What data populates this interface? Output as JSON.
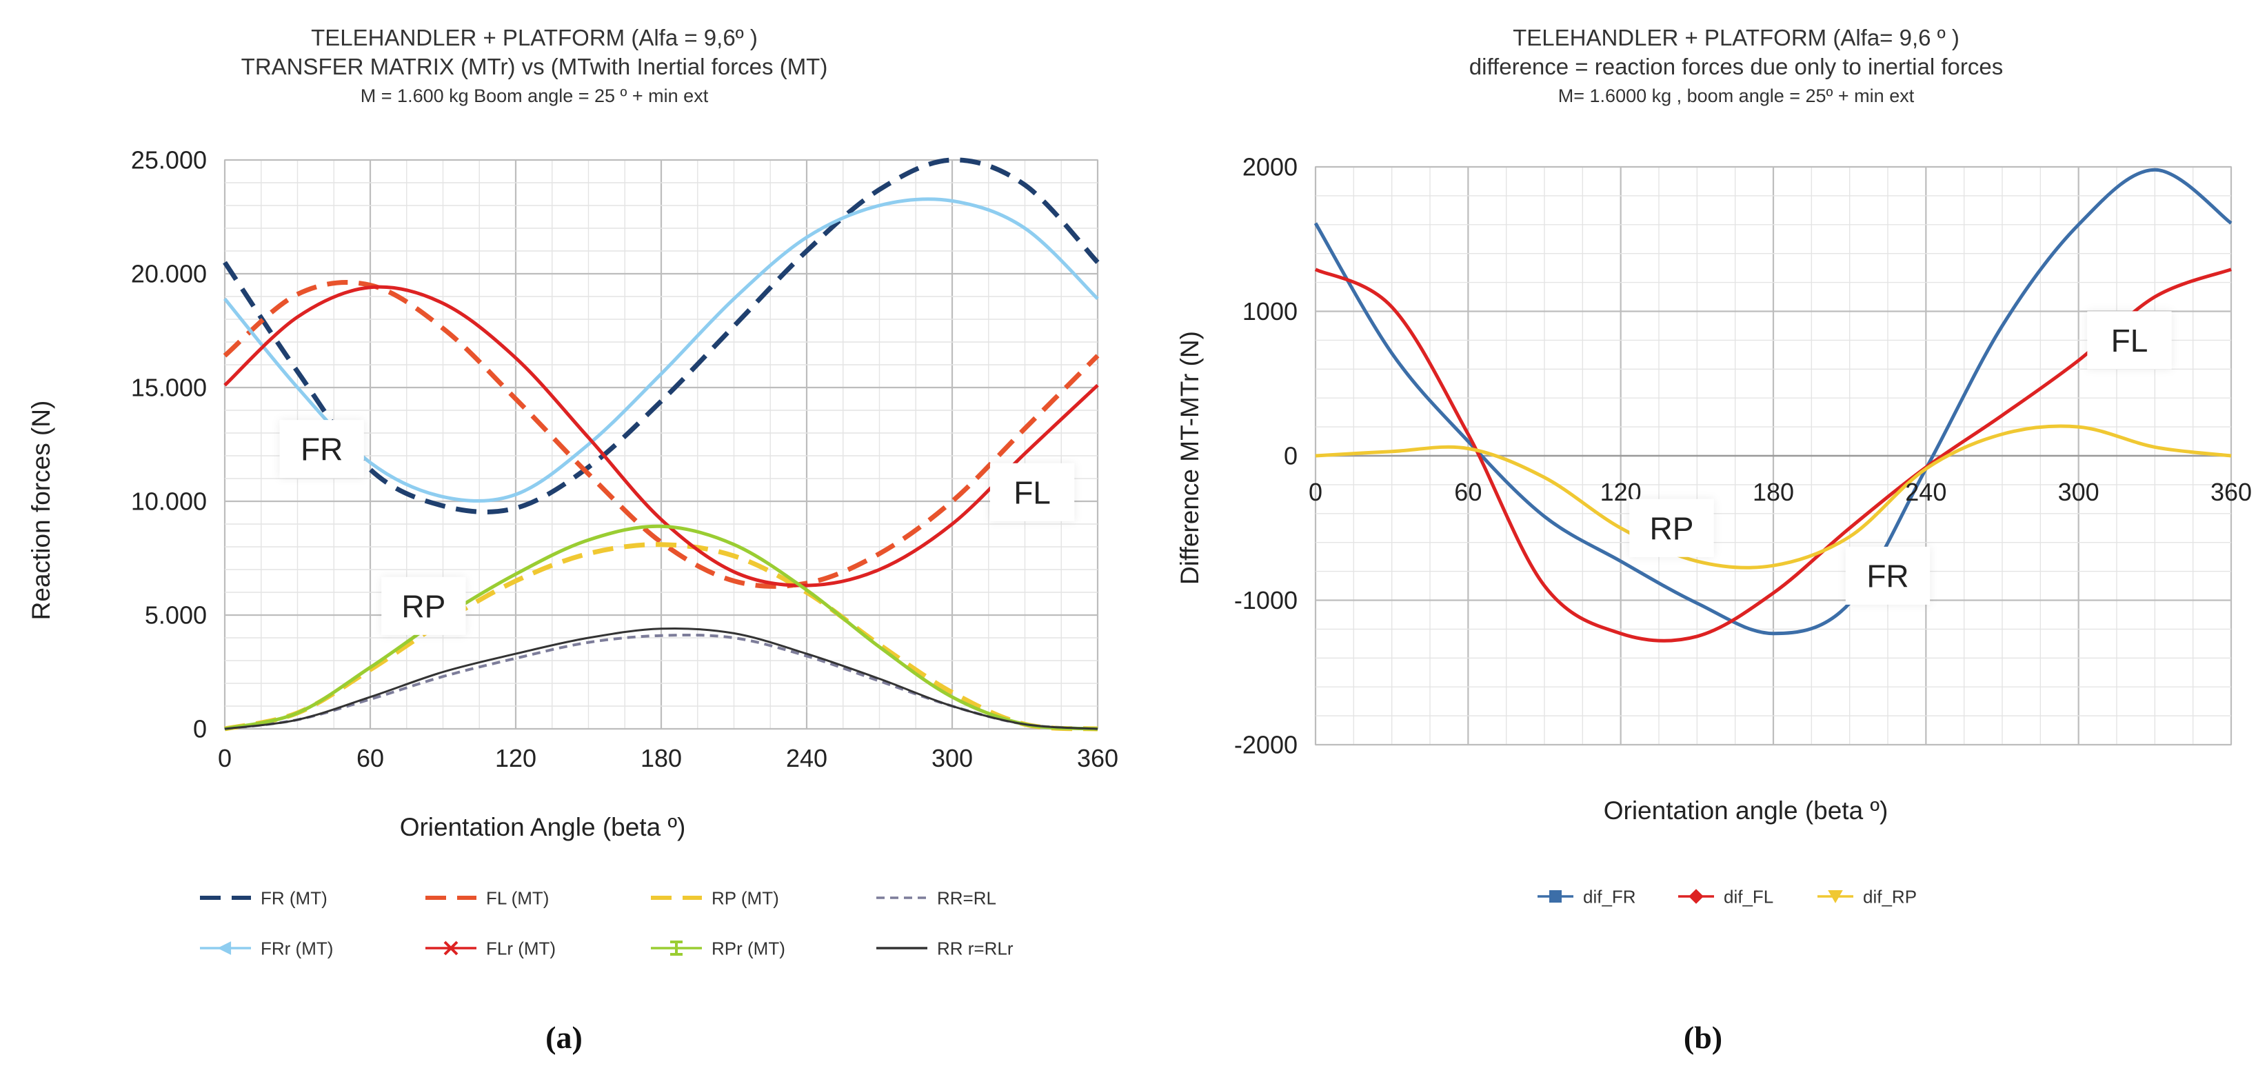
{
  "chart_data": [
    {
      "panel": "(a)",
      "type": "line",
      "title": [
        "TELEHANDLER + PLATFORM (Alfa = 9,6º )",
        "TRANSFER MATRIX (MTr) vs (MTwith Inertial forces (MT)"
      ],
      "subtitle": "M = 1.600 kg   Boom angle  = 25 º + min ext",
      "xlabel": "Orientation Angle (beta º)",
      "ylabel": "Reaction forces (N)",
      "xlim": [
        0,
        360
      ],
      "ylim": [
        0,
        25000
      ],
      "x_ticks": [
        0,
        60,
        120,
        180,
        240,
        300,
        360
      ],
      "x_tick_labels": [
        "0",
        "60",
        "120",
        "180",
        "240",
        "300",
        "360"
      ],
      "y_ticks": [
        0,
        5000,
        10000,
        15000,
        20000,
        25000
      ],
      "y_tick_labels": [
        "0",
        "5.000",
        "10.000",
        "15.000",
        "20.000",
        "25.000"
      ],
      "grid": true,
      "legend_position": "bottom",
      "x": [
        0,
        30,
        60,
        90,
        120,
        150,
        180,
        210,
        240,
        270,
        300,
        330,
        360
      ],
      "series": [
        {
          "name": "FR (MT)",
          "color": "#1f3f6e",
          "dash": "long",
          "marker": "none",
          "values": [
            20500,
            15700,
            11400,
            9800,
            9700,
            11500,
            14400,
            17700,
            21000,
            23700,
            25000,
            23900,
            20500
          ]
        },
        {
          "name": "FL (MT)",
          "color": "#e8532c",
          "dash": "long",
          "marker": "none",
          "values": [
            16400,
            19100,
            19500,
            17600,
            14500,
            11200,
            8200,
            6500,
            6400,
            7700,
            10000,
            13200,
            16400
          ]
        },
        {
          "name": "RP (MT)",
          "color": "#f0c832",
          "dash": "long",
          "marker": "none",
          "values": [
            0,
            700,
            2600,
            4700,
            6500,
            7700,
            8100,
            7600,
            6000,
            3700,
            1600,
            200,
            0
          ]
        },
        {
          "name": "RR=RL",
          "color": "#7d7d9a",
          "dash": "short",
          "marker": "none",
          "values": [
            0,
            400,
            1300,
            2300,
            3100,
            3800,
            4100,
            4000,
            3200,
            2100,
            1000,
            200,
            0
          ]
        },
        {
          "name": "FRr (MT)",
          "color": "#8ecdf0",
          "dash": "solid",
          "marker": "triangle-left",
          "values": [
            18900,
            15000,
            11700,
            10200,
            10300,
            12500,
            15600,
            18900,
            21600,
            23000,
            23200,
            22000,
            18900
          ]
        },
        {
          "name": "FLr (MT)",
          "color": "#dd2222",
          "dash": "solid",
          "marker": "x",
          "values": [
            15100,
            18100,
            19400,
            18700,
            16300,
            12800,
            9200,
            6900,
            6300,
            7000,
            9000,
            12100,
            15100
          ]
        },
        {
          "name": "RPr (MT)",
          "color": "#9acd32",
          "dash": "solid",
          "marker": "bar",
          "values": [
            0,
            700,
            2700,
            4900,
            6800,
            8300,
            8900,
            8100,
            6100,
            3600,
            1400,
            200,
            0
          ]
        },
        {
          "name": "RR r=RLr",
          "color": "#333333",
          "dash": "solid",
          "marker": "none",
          "values": [
            0,
            400,
            1400,
            2500,
            3300,
            4000,
            4400,
            4200,
            3300,
            2200,
            1000,
            200,
            0
          ]
        }
      ],
      "annotations": [
        {
          "text": "FR",
          "x": 40,
          "y": 12300
        },
        {
          "text": "FL",
          "x": 333,
          "y": 10400
        },
        {
          "text": "RP",
          "x": 82,
          "y": 5400
        }
      ]
    },
    {
      "panel": "(b)",
      "type": "line",
      "title": [
        "TELEHANDLER + PLATFORM (Alfa= 9,6 º )",
        "difference = reaction forces due only to inertial forces"
      ],
      "subtitle": "M= 1.6000 kg ,  boom angle =  25º  +  min ext",
      "xlabel": "Orientation angle (beta º)",
      "ylabel": "Difference MT-MTr (N)",
      "xlim": [
        0,
        360
      ],
      "ylim": [
        -2000,
        2000
      ],
      "x_ticks": [
        0,
        60,
        120,
        180,
        240,
        300,
        360
      ],
      "x_tick_labels": [
        "0",
        "60",
        "120",
        "180",
        "240",
        "300",
        "360"
      ],
      "y_ticks": [
        -2000,
        -1000,
        0,
        1000,
        2000
      ],
      "y_tick_labels": [
        "-2000",
        "-1000",
        "0",
        "1000",
        "2000"
      ],
      "grid": true,
      "legend_position": "bottom",
      "x": [
        0,
        30,
        60,
        90,
        120,
        150,
        180,
        210,
        240,
        270,
        300,
        330,
        360
      ],
      "series": [
        {
          "name": "dif_FR",
          "color": "#3c6ea8",
          "marker": "square",
          "values": [
            1610,
            710,
            100,
            -420,
            -730,
            -1020,
            -1230,
            -1020,
            -90,
            900,
            1600,
            1980,
            1610
          ]
        },
        {
          "name": "dif_FL",
          "color": "#dd2222",
          "marker": "diamond",
          "values": [
            1290,
            1030,
            150,
            -900,
            -1230,
            -1250,
            -950,
            -500,
            -80,
            280,
            660,
            1100,
            1290
          ]
        },
        {
          "name": "dif_RP",
          "color": "#f0c832",
          "marker": "triangle-down",
          "values": [
            0,
            30,
            50,
            -150,
            -500,
            -730,
            -760,
            -560,
            -90,
            150,
            200,
            60,
            0
          ]
        }
      ],
      "annotations": [
        {
          "text": "FL",
          "x": 320,
          "y": 800
        },
        {
          "text": "RP",
          "x": 140,
          "y": -500
        },
        {
          "text": "FR",
          "x": 225,
          "y": -830
        }
      ]
    }
  ],
  "captions": [
    "(a)",
    "(b)"
  ]
}
